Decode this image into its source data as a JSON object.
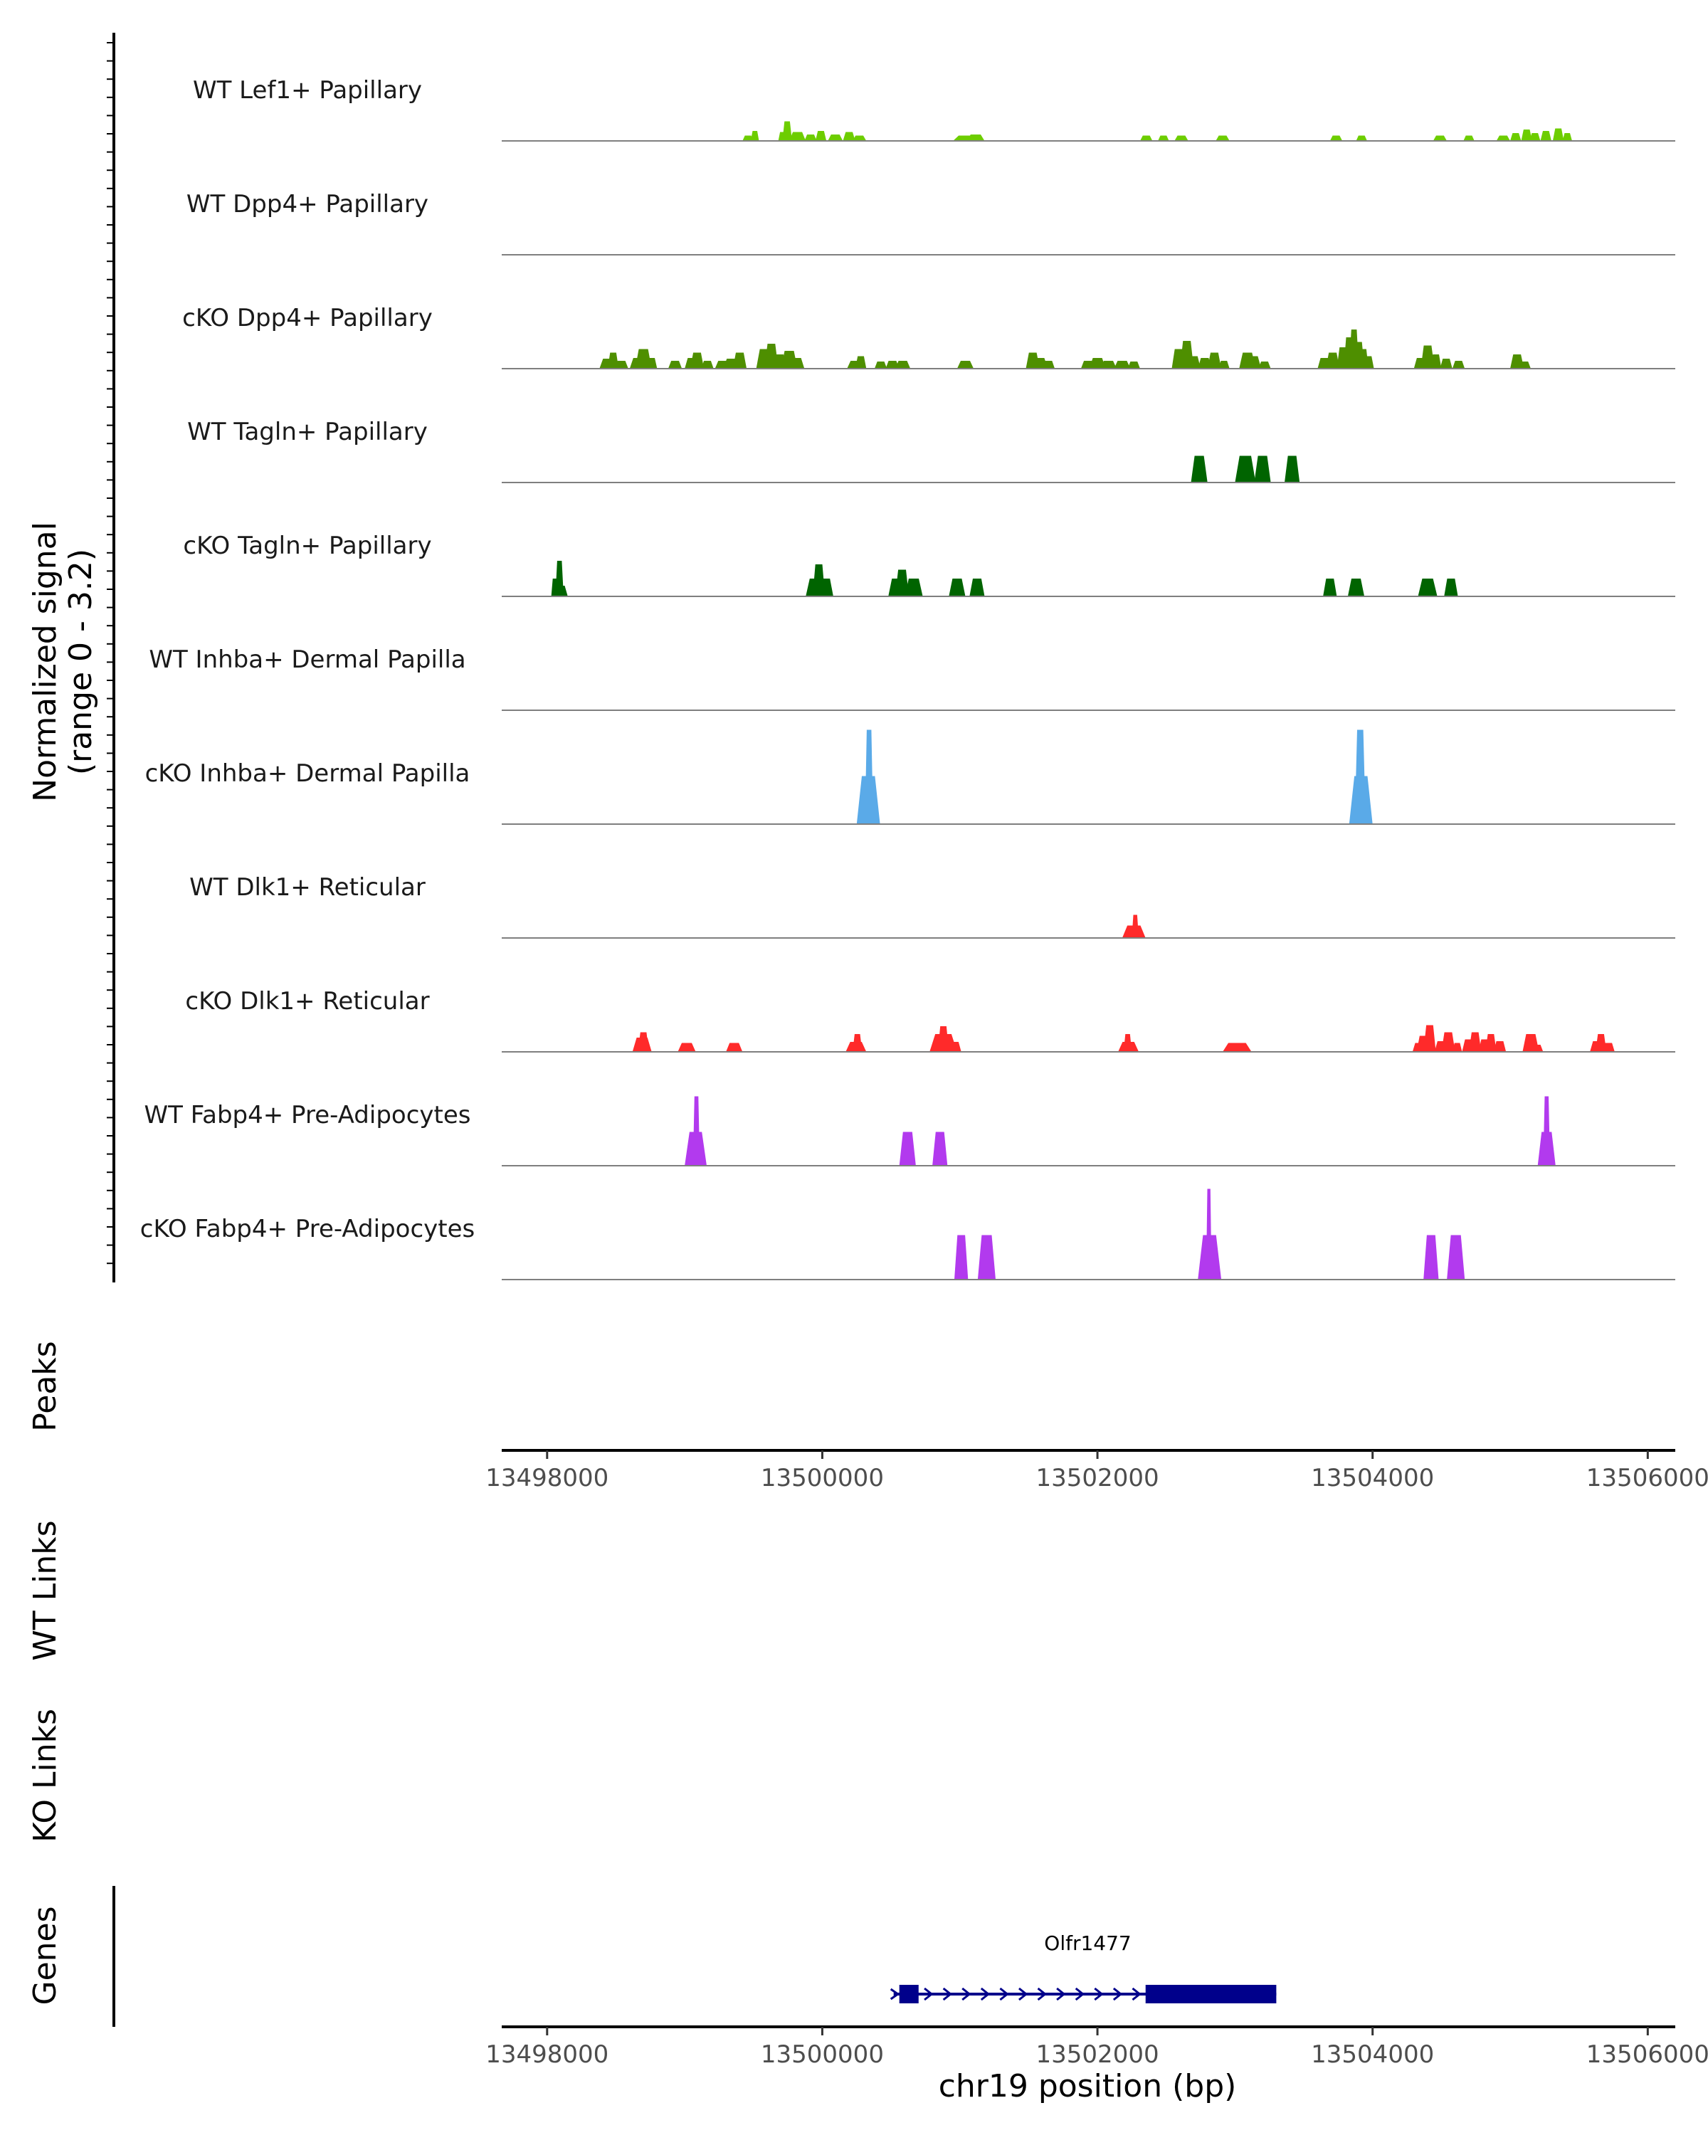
{
  "chart_data": {
    "type": "area",
    "title": "",
    "xlabel": "chr19 position (bp)",
    "ylabel": "Normalized signal",
    "ylabel_range": "(range 0 - 3.2)",
    "ylim": [
      0,
      3.2
    ],
    "xlim": [
      13497670,
      13506200
    ],
    "x_ticks": [
      13498000,
      13500000,
      13502000,
      13504000,
      13506000
    ],
    "x_tick_labels": [
      "13498000",
      "13500000",
      "13502000",
      "13504000",
      "13506000"
    ],
    "track_labels": {
      "peaks": "Peaks",
      "wt_links": "WT Links",
      "ko_links": "KO Links",
      "genes": "Genes"
    },
    "series": [
      {
        "name": "WT Lef1+ Papillary",
        "color": "#6DCD00",
        "peaks": [
          [
            13499420,
            13499500,
            0.15
          ],
          [
            13499480,
            13499540,
            0.28
          ],
          [
            13499680,
            13499740,
            0.25
          ],
          [
            13499710,
            13499780,
            0.55
          ],
          [
            13499760,
            13499880,
            0.25
          ],
          [
            13499870,
            13499960,
            0.18
          ],
          [
            13499950,
            13500030,
            0.28
          ],
          [
            13500040,
            13500150,
            0.18
          ],
          [
            13500150,
            13500240,
            0.25
          ],
          [
            13500220,
            13500320,
            0.15
          ],
          [
            13500950,
            13501150,
            0.15
          ],
          [
            13501050,
            13501180,
            0.18
          ],
          [
            13502310,
            13502400,
            0.15
          ],
          [
            13502440,
            13502520,
            0.15
          ],
          [
            13502560,
            13502660,
            0.15
          ],
          [
            13502860,
            13502960,
            0.15
          ],
          [
            13503690,
            13503780,
            0.15
          ],
          [
            13503880,
            13503960,
            0.15
          ],
          [
            13504440,
            13504540,
            0.15
          ],
          [
            13504660,
            13504740,
            0.15
          ],
          [
            13504900,
            13505000,
            0.15
          ],
          [
            13505000,
            13505080,
            0.22
          ],
          [
            13505080,
            13505160,
            0.32
          ],
          [
            13505140,
            13505220,
            0.22
          ],
          [
            13505220,
            13505300,
            0.28
          ],
          [
            13505310,
            13505390,
            0.35
          ],
          [
            13505380,
            13505450,
            0.22
          ]
        ]
      },
      {
        "name": "WT Dpp4+ Papillary",
        "color": "#4E9A06",
        "peaks": []
      },
      {
        "name": "cKO Dpp4+ Papillary",
        "color": "#4E8F00",
        "peaks": [
          [
            13498380,
            13498500,
            0.28
          ],
          [
            13498440,
            13498520,
            0.45
          ],
          [
            13498490,
            13498590,
            0.22
          ],
          [
            13498600,
            13498720,
            0.3
          ],
          [
            13498640,
            13498760,
            0.55
          ],
          [
            13498720,
            13498800,
            0.3
          ],
          [
            13498880,
            13498980,
            0.22
          ],
          [
            13499000,
            13499100,
            0.3
          ],
          [
            13499040,
            13499140,
            0.45
          ],
          [
            13499120,
            13499210,
            0.22
          ],
          [
            13499220,
            13499330,
            0.22
          ],
          [
            13499280,
            13499400,
            0.28
          ],
          [
            13499350,
            13499450,
            0.45
          ],
          [
            13499520,
            13499640,
            0.55
          ],
          [
            13499580,
            13499680,
            0.7
          ],
          [
            13499640,
            13499740,
            0.4
          ],
          [
            13499700,
            13499820,
            0.5
          ],
          [
            13499760,
            13499870,
            0.3
          ],
          [
            13500180,
            13500300,
            0.22
          ],
          [
            13500240,
            13500320,
            0.35
          ],
          [
            13500380,
            13500470,
            0.2
          ],
          [
            13500460,
            13500560,
            0.22
          ],
          [
            13500530,
            13500640,
            0.22
          ],
          [
            13500980,
            13501100,
            0.22
          ],
          [
            13501480,
            13501580,
            0.45
          ],
          [
            13501520,
            13501640,
            0.3
          ],
          [
            13501600,
            13501690,
            0.22
          ],
          [
            13501880,
            13501980,
            0.22
          ],
          [
            13501940,
            13502060,
            0.3
          ],
          [
            13502020,
            13502140,
            0.22
          ],
          [
            13502120,
            13502240,
            0.22
          ],
          [
            13502220,
            13502310,
            0.2
          ],
          [
            13502540,
            13502640,
            0.55
          ],
          [
            13502600,
            13502700,
            0.78
          ],
          [
            13502650,
            13502750,
            0.35
          ],
          [
            13502730,
            13502830,
            0.3
          ],
          [
            13502800,
            13502900,
            0.45
          ],
          [
            13502880,
            13502960,
            0.22
          ],
          [
            13503030,
            13503150,
            0.45
          ],
          [
            13503080,
            13503190,
            0.35
          ],
          [
            13503170,
            13503260,
            0.2
          ],
          [
            13503600,
            13503700,
            0.3
          ],
          [
            13503660,
            13503760,
            0.45
          ],
          [
            13503740,
            13503830,
            0.6
          ],
          [
            13503790,
            13503870,
            0.88
          ],
          [
            13503830,
            13503900,
            1.1
          ],
          [
            13503860,
            13503940,
            0.75
          ],
          [
            13503900,
            13503970,
            0.55
          ],
          [
            13503930,
            13504010,
            0.35
          ],
          [
            13504300,
            13504400,
            0.3
          ],
          [
            13504350,
            13504450,
            0.65
          ],
          [
            13504420,
            13504500,
            0.4
          ],
          [
            13504490,
            13504580,
            0.28
          ],
          [
            13504580,
            13504670,
            0.22
          ],
          [
            13505000,
            13505100,
            0.4
          ],
          [
            13505060,
            13505150,
            0.2
          ]
        ]
      },
      {
        "name": "WT Tagln+ Papillary",
        "color": "#006400",
        "peaks": [
          [
            13502680,
            13502800,
            0.75
          ],
          [
            13503000,
            13503150,
            0.75
          ],
          [
            13503140,
            13503260,
            0.75
          ],
          [
            13503360,
            13503470,
            0.75
          ]
        ]
      },
      {
        "name": "cKO Tagln+ Papillary",
        "color": "#006400",
        "peaks": [
          [
            13498030,
            13498080,
            0.5
          ],
          [
            13498050,
            13498150,
            0.3
          ],
          [
            13498060,
            13498120,
            1.0
          ],
          [
            13499880,
            13500010,
            0.5
          ],
          [
            13499930,
            13500020,
            0.9
          ],
          [
            13499970,
            13500080,
            0.5
          ],
          [
            13500480,
            13500600,
            0.5
          ],
          [
            13500530,
            13500630,
            0.75
          ],
          [
            13500600,
            13500730,
            0.5
          ],
          [
            13500920,
            13501040,
            0.5
          ],
          [
            13501070,
            13501180,
            0.5
          ],
          [
            13503640,
            13503740,
            0.5
          ],
          [
            13503820,
            13503940,
            0.5
          ],
          [
            13504330,
            13504470,
            0.5
          ],
          [
            13504520,
            13504620,
            0.5
          ]
        ]
      },
      {
        "name": "WT Inhba+ Dermal Papilla",
        "color": "#56A0E6",
        "peaks": []
      },
      {
        "name": "cKO Inhba+ Dermal Papilla",
        "color": "#5AAAE8",
        "peaks": [
          [
            13500250,
            13500420,
            1.35
          ],
          [
            13500310,
            13500370,
            2.65
          ],
          [
            13503830,
            13504000,
            1.35
          ],
          [
            13503870,
            13503950,
            2.65
          ]
        ]
      },
      {
        "name": "WT Dlk1+ Reticular",
        "color": "#FF2A2A",
        "peaks": [
          [
            13502180,
            13502350,
            0.35
          ],
          [
            13502250,
            13502300,
            0.65
          ]
        ]
      },
      {
        "name": "cKO Dlk1+ Reticular",
        "color": "#FF2A2A",
        "peaks": [
          [
            13498620,
            13498760,
            0.4
          ],
          [
            13498660,
            13498740,
            0.55
          ],
          [
            13498950,
            13499080,
            0.25
          ],
          [
            13499300,
            13499420,
            0.25
          ],
          [
            13500170,
            13500320,
            0.28
          ],
          [
            13500220,
            13500290,
            0.5
          ],
          [
            13500780,
            13500980,
            0.5
          ],
          [
            13500840,
            13500920,
            0.72
          ],
          [
            13500920,
            13501010,
            0.28
          ],
          [
            13502150,
            13502300,
            0.28
          ],
          [
            13502190,
            13502250,
            0.5
          ],
          [
            13502910,
            13503120,
            0.25
          ],
          [
            13504290,
            13504380,
            0.25
          ],
          [
            13504320,
            13504420,
            0.45
          ],
          [
            13504370,
            13504460,
            0.75
          ],
          [
            13504450,
            13504550,
            0.3
          ],
          [
            13504500,
            13504600,
            0.55
          ],
          [
            13504580,
            13504650,
            0.25
          ],
          [
            13504650,
            13504750,
            0.35
          ],
          [
            13504700,
            13504790,
            0.55
          ],
          [
            13504770,
            13504860,
            0.35
          ],
          [
            13504820,
            13504900,
            0.5
          ],
          [
            13504880,
            13504970,
            0.3
          ],
          [
            13505090,
            13505210,
            0.5
          ],
          [
            13505150,
            13505240,
            0.2
          ],
          [
            13505580,
            13505680,
            0.3
          ],
          [
            13505620,
            13505700,
            0.5
          ],
          [
            13505670,
            13505760,
            0.25
          ]
        ]
      },
      {
        "name": "WT Fabp4+ Pre-Adipocytes",
        "color": "#B23AEE",
        "peaks": [
          [
            13499000,
            13499160,
            0.95
          ],
          [
            13499060,
            13499110,
            1.95
          ],
          [
            13500560,
            13500680,
            0.95
          ],
          [
            13500800,
            13500910,
            0.95
          ],
          [
            13505200,
            13505330,
            0.95
          ],
          [
            13505240,
            13505290,
            1.95
          ]
        ]
      },
      {
        "name": "cKO Fabp4+ Pre-Adipocytes",
        "color": "#B23AEE",
        "peaks": [
          [
            13500960,
            13501060,
            1.25
          ],
          [
            13501130,
            13501260,
            1.25
          ],
          [
            13502730,
            13502900,
            1.25
          ],
          [
            13502790,
            13502830,
            2.55
          ],
          [
            13504370,
            13504480,
            1.25
          ],
          [
            13504540,
            13504670,
            1.25
          ]
        ]
      }
    ],
    "gene": {
      "name": "Olfr1477",
      "strand": "+",
      "start": 13500560,
      "end": 13503300,
      "exons": [
        [
          13500560,
          13500700
        ],
        [
          13502350,
          13503300
        ]
      ]
    }
  },
  "colors": {
    "axis": "#000000",
    "baseline": "#7f7f7f",
    "gene": "#00008B",
    "tick_label": "#4D4D4D"
  }
}
